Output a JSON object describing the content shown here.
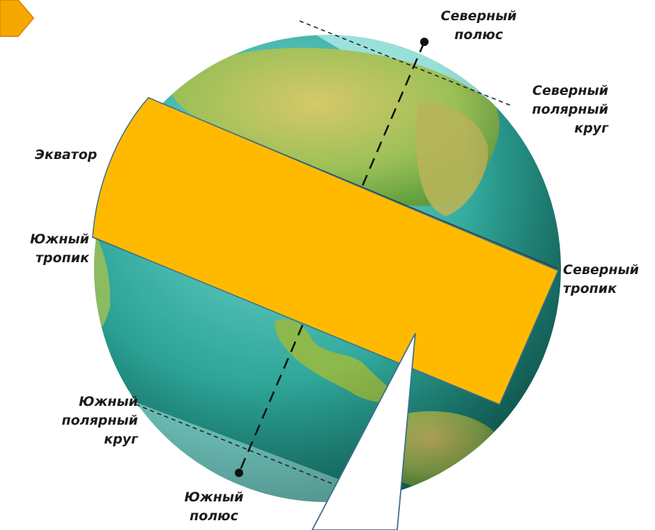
{
  "labels": {
    "north_pole": [
      "Северный",
      "полюс"
    ],
    "arctic_circle": [
      "Северный",
      "полярный",
      "круг"
    ],
    "equator": [
      "Экватор"
    ],
    "tropic_capricorn": [
      "Южный",
      "тропик"
    ],
    "tropic_cancer": [
      "Северный",
      "тропик"
    ],
    "antarctic_circle": [
      "Южный",
      "полярный",
      "круг"
    ],
    "south_pole": [
      "Южный",
      "полюс"
    ]
  },
  "colors": {
    "band_fill": "#FFBA00",
    "band_stroke": "#3C6E8F",
    "callout_fill": "#FFFFFF",
    "callout_stroke": "#3C6E8F",
    "arrow_tab": "#F5A800",
    "ocean_light": "#7FDCD6",
    "ocean_dark": "#157A6E",
    "land_green": "#7FB547",
    "land_yellow": "#D6C86A"
  },
  "icons": [
    "arrow-tab-icon",
    "north-pole-dot-icon",
    "south-pole-dot-icon"
  ]
}
